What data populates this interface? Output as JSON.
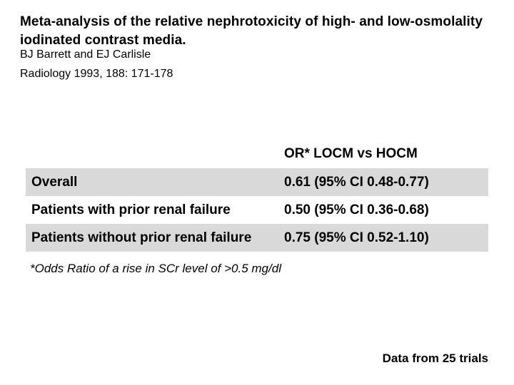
{
  "slide": {
    "title": "Meta-analysis of the relative nephrotoxicity of high- and low-osmolality iodinated contrast media.",
    "authors": "BJ Barrett and EJ Carlisle",
    "citation": "Radiology 1993, 188: 171-178",
    "footnote": "*Odds Ratio of a rise in SCr level of >0.5 mg/dl",
    "data_source_note": "Data from 25 trials"
  },
  "table": {
    "value_column_header": "OR* LOCM vs HOCM",
    "rows": [
      {
        "label": "Overall",
        "value": "0.61 (95% CI 0.48-0.77)",
        "shaded": true
      },
      {
        "label": "Patients with prior renal failure",
        "value": "0.50 (95% CI 0.36-0.68)",
        "shaded": false
      },
      {
        "label": "Patients without prior renal failure",
        "value": "0.75 (95% CI 0.52-1.10)",
        "shaded": true
      }
    ]
  },
  "colors": {
    "background": "#ffffff",
    "text": "#000000",
    "row_shading": "#d9d9d9"
  }
}
